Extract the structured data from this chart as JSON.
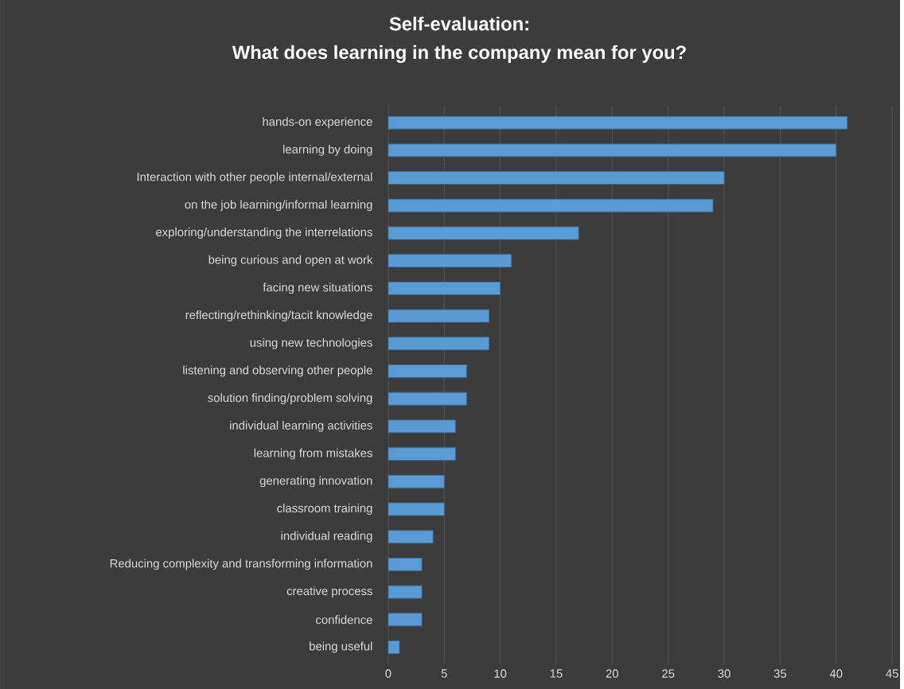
{
  "chart_data": {
    "type": "bar",
    "orientation": "horizontal",
    "title": "Self-evaluation:",
    "subtitle": "What does learning in the company mean for you?",
    "categories": [
      "hands-on experience",
      "learning by doing",
      "Interaction with other people internal/external",
      "on the job learning/informal learning",
      "exploring/understanding the interrelations",
      "being curious and open at work",
      "facing new situations",
      "reflecting/rethinking/tacit knowledge",
      "using new technologies",
      "listening and observing other people",
      "solution finding/problem solving",
      "individual learning activities",
      "learning from mistakes",
      "generating innovation",
      "classroom training",
      "individual reading",
      "Reducing complexity and transforming information",
      "creative process",
      "confidence",
      "being useful"
    ],
    "values": [
      41,
      40,
      30,
      29,
      17,
      11,
      10,
      9,
      9,
      7,
      7,
      6,
      6,
      5,
      5,
      4,
      3,
      3,
      3,
      1
    ],
    "color": "#5b9bd5",
    "xlim": [
      0,
      45
    ],
    "xticks": [
      0,
      5,
      10,
      15,
      20,
      25,
      30,
      35,
      40,
      45
    ],
    "grid": "x"
  }
}
